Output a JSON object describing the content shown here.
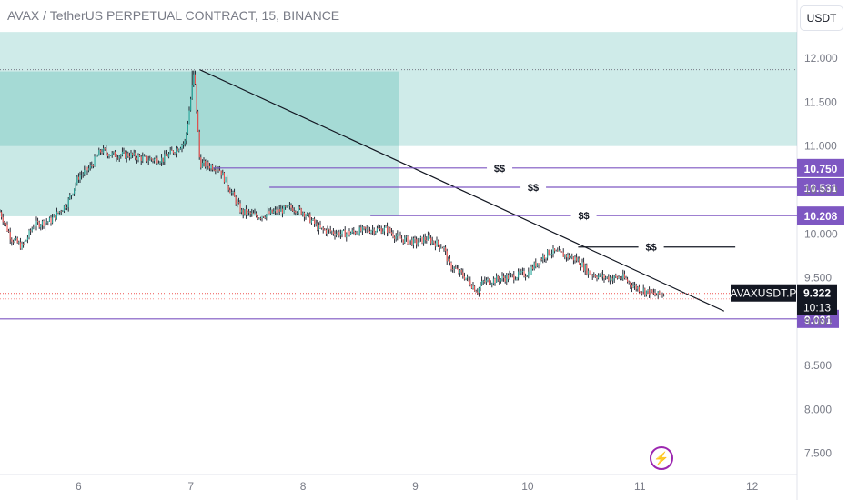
{
  "header": {
    "title": "AVAX / TetherUS PERPETUAL CONTRACT, 15, BINANCE",
    "currency_button": "USDT",
    "bolt_icon": "lightning-icon"
  },
  "colors": {
    "up_candle": "#26a69a",
    "down_candle": "#ef5350",
    "zone_fill": "#26a69a",
    "level_line": "#7e57c2",
    "trendline": "#131722"
  },
  "chart_data": {
    "type": "candlestick",
    "title": "AVAX / TetherUS PERPETUAL CONTRACT, 15, BINANCE",
    "ylim": [
      7.3,
      12.55
    ],
    "y_ticks": [
      "12.000",
      "11.500",
      "11.000",
      "10.500",
      "10.000",
      "9.500",
      "9.000",
      "8.500",
      "8.000",
      "7.500"
    ],
    "y_tick_values": [
      12.0,
      11.5,
      11.0,
      10.5,
      10.0,
      9.5,
      9.0,
      8.5,
      8.0,
      7.5
    ],
    "x_ticks": [
      "6",
      "7",
      "8",
      "9",
      "10",
      "11",
      "12"
    ],
    "x_tick_values": [
      6,
      7,
      8,
      9,
      10,
      11,
      12
    ],
    "xlim": [
      5.3,
      12.4
    ],
    "price_path": [
      [
        5.3,
        10.25
      ],
      [
        5.4,
        9.95
      ],
      [
        5.5,
        9.85
      ],
      [
        5.6,
        10.1
      ],
      [
        5.75,
        10.15
      ],
      [
        5.9,
        10.35
      ],
      [
        6.0,
        10.65
      ],
      [
        6.1,
        10.75
      ],
      [
        6.2,
        10.95
      ],
      [
        6.3,
        10.9
      ],
      [
        6.45,
        10.9
      ],
      [
        6.6,
        10.85
      ],
      [
        6.75,
        10.85
      ],
      [
        6.85,
        10.95
      ],
      [
        6.95,
        11.05
      ],
      [
        7.03,
        11.85
      ],
      [
        7.08,
        10.8
      ],
      [
        7.25,
        10.75
      ],
      [
        7.35,
        10.5
      ],
      [
        7.45,
        10.25
      ],
      [
        7.6,
        10.2
      ],
      [
        7.75,
        10.25
      ],
      [
        7.9,
        10.3
      ],
      [
        8.0,
        10.25
      ],
      [
        8.15,
        10.05
      ],
      [
        8.35,
        10.0
      ],
      [
        8.6,
        10.05
      ],
      [
        8.75,
        10.05
      ],
      [
        8.85,
        9.95
      ],
      [
        9.0,
        9.9
      ],
      [
        9.1,
        9.95
      ],
      [
        9.25,
        9.85
      ],
      [
        9.3,
        9.65
      ],
      [
        9.45,
        9.5
      ],
      [
        9.55,
        9.35
      ],
      [
        9.6,
        9.45
      ],
      [
        9.8,
        9.5
      ],
      [
        10.0,
        9.55
      ],
      [
        10.1,
        9.7
      ],
      [
        10.2,
        9.8
      ],
      [
        10.35,
        9.75
      ],
      [
        10.45,
        9.7
      ],
      [
        10.55,
        9.55
      ],
      [
        10.7,
        9.5
      ],
      [
        10.85,
        9.5
      ],
      [
        10.95,
        9.4
      ],
      [
        11.05,
        9.35
      ],
      [
        11.15,
        9.3
      ],
      [
        11.22,
        9.322
      ]
    ],
    "zones": [
      {
        "x_from": 5.3,
        "x_to": 12.4,
        "y_from": 11.0,
        "y_to": 12.3
      },
      {
        "x_from": 5.3,
        "x_to": 8.85,
        "y_from": 10.2,
        "y_to": 11.85
      }
    ],
    "trendline": {
      "x1": 7.08,
      "y1": 11.87,
      "x2": 11.75,
      "y2": 9.12
    },
    "high_line": 11.87,
    "levels": [
      {
        "value": 10.75,
        "label": "10.750",
        "x_from": 7.2,
        "marker": "$$",
        "marker_x": 9.75
      },
      {
        "value": 10.531,
        "label": "10.531",
        "x_from": 7.7,
        "marker": "$$",
        "marker_x": 10.05
      },
      {
        "value": 10.208,
        "label": "10.208",
        "x_from": 8.6,
        "marker": "$$",
        "marker_x": 10.5
      },
      {
        "value": 9.031,
        "label": "9.031",
        "x_from": 5.3,
        "marker": "",
        "marker_x": 0
      }
    ],
    "black_level": {
      "value": 9.85,
      "x_from": 10.45,
      "x_to": 11.85,
      "marker": "$$",
      "marker_x": 11.1
    },
    "current_price": {
      "symbol": "AVAXUSDT.P",
      "value": "9.322",
      "countdown": "10:13",
      "y": 9.322
    }
  }
}
